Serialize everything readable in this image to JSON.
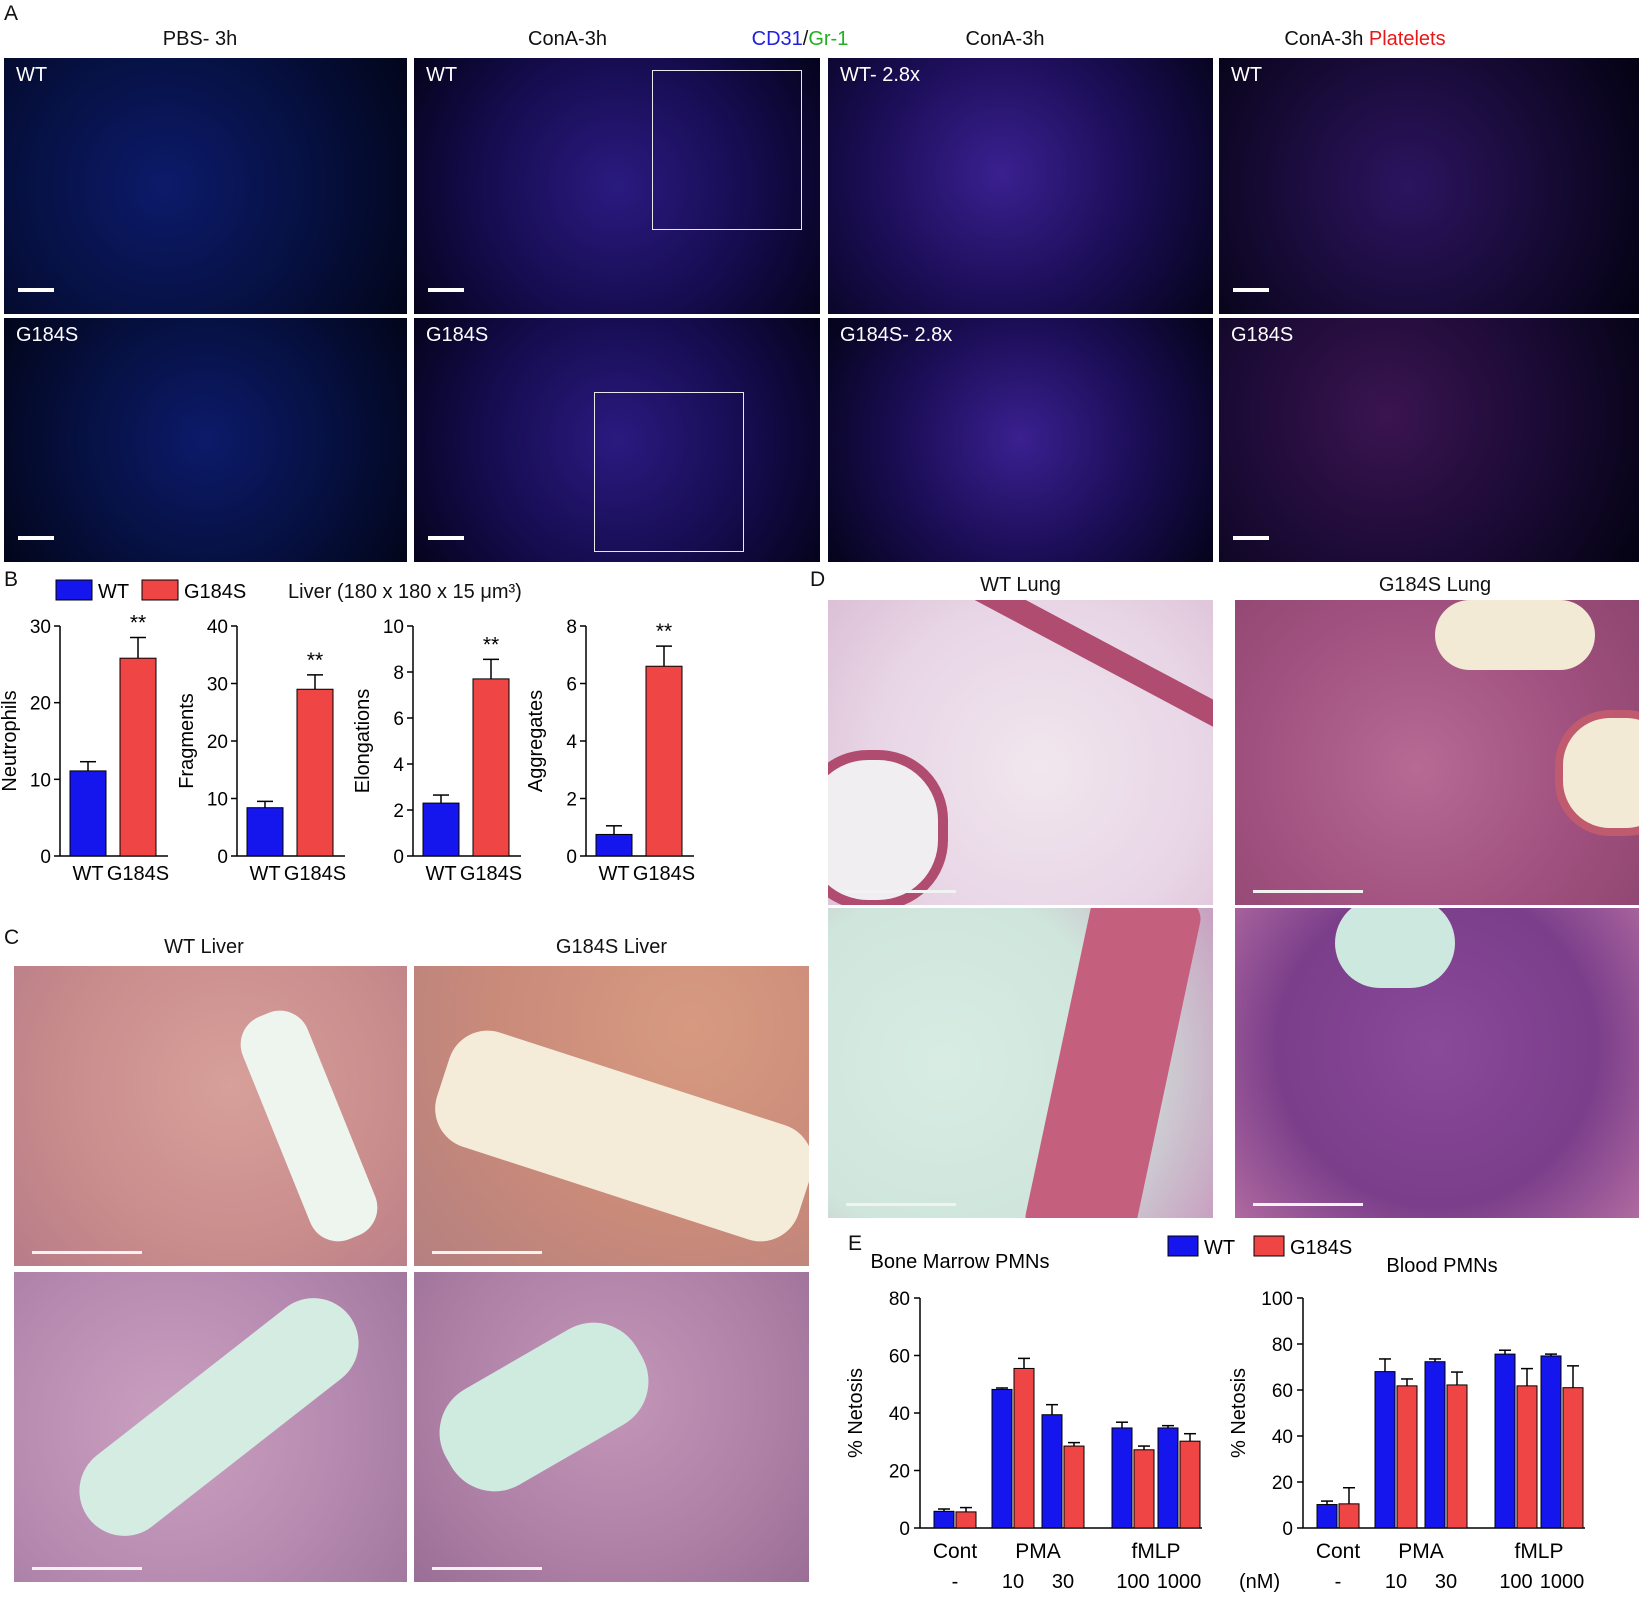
{
  "panel_letters": {
    "a": "A",
    "b": "B",
    "c": "C",
    "d": "D",
    "e": "E"
  },
  "panel_a": {
    "legend_cd31": "CD31",
    "legend_slash": "/",
    "legend_gr1": "Gr-1",
    "legend_colors": {
      "cd31": "#2020e0",
      "gr1": "#22c422",
      "platelets": "#e81818"
    },
    "col_titles": [
      "PBS- 3h",
      "ConA-3h",
      "ConA-3h",
      "ConA-3h"
    ],
    "col4_platelets": "Platelets",
    "tags_top": [
      "WT",
      "WT",
      "WT- 2.8x",
      "WT"
    ],
    "tags_bottom": [
      "G184S",
      "G184S",
      "G184S- 2.8x",
      "G184S"
    ]
  },
  "panel_c": {
    "titles": [
      "WT Liver",
      "G184S Liver"
    ]
  },
  "panel_d": {
    "titles": [
      "WT Lung",
      "G184S Lung"
    ]
  },
  "colors": {
    "wt": "#1515ee",
    "g184s": "#f04545"
  },
  "chart_data": [
    {
      "type": "bar",
      "panel": "B",
      "header": "Liver (180 x 180 x 15 μm³)",
      "legend": [
        "WT",
        "G184S"
      ],
      "charts": [
        {
          "ylabel": "Neutrophils",
          "ylim": [
            0,
            30
          ],
          "yticks": [
            0,
            10,
            20,
            30
          ],
          "categories": [
            "WT",
            "G184S"
          ],
          "values": [
            11.1,
            25.8
          ],
          "errors": [
            1.2,
            2.7
          ],
          "annotation": "**"
        },
        {
          "ylabel": "Fragments",
          "ylim": [
            0,
            40
          ],
          "yticks": [
            0,
            10,
            20,
            30,
            40
          ],
          "categories": [
            "WT",
            "G184S"
          ],
          "values": [
            8.4,
            29.0
          ],
          "errors": [
            1.1,
            2.5
          ],
          "annotation": "**"
        },
        {
          "ylabel": "Elongations",
          "ylim": [
            0,
            10
          ],
          "yticks": [
            0,
            2,
            4,
            6,
            8,
            10
          ],
          "categories": [
            "WT",
            "G184S"
          ],
          "values": [
            2.3,
            7.7
          ],
          "errors": [
            0.35,
            0.85
          ],
          "annotation": "**"
        },
        {
          "ylabel": "Aggregates",
          "ylim": [
            0,
            8
          ],
          "yticks": [
            0,
            2,
            4,
            6,
            8
          ],
          "categories": [
            "WT",
            "G184S"
          ],
          "values": [
            0.75,
            6.6
          ],
          "errors": [
            0.3,
            0.7
          ],
          "annotation": "**"
        }
      ]
    },
    {
      "type": "bar",
      "panel": "E",
      "legend": [
        "WT",
        "G184S"
      ],
      "ylabel": "% Netosis",
      "group_labels": [
        "Cont",
        "PMA",
        "fMLP"
      ],
      "dose_labels": [
        "-",
        "10",
        "30",
        "100",
        "1000"
      ],
      "dose_unit": "(nM)",
      "charts": [
        {
          "title": "Bone Marrow PMNs",
          "ylim": [
            0,
            80
          ],
          "yticks": [
            0,
            20,
            40,
            60,
            80
          ],
          "series": [
            {
              "name": "WT",
              "values": [
                5.8,
                48.2,
                39.4,
                34.8,
                34.8
              ],
              "errors": [
                0.8,
                0.5,
                3.5,
                2.0,
                0.8
              ]
            },
            {
              "name": "G184S",
              "values": [
                5.6,
                55.5,
                28.5,
                27.2,
                30.2
              ],
              "errors": [
                1.5,
                3.5,
                1.2,
                1.3,
                2.6
              ]
            }
          ]
        },
        {
          "title": "Blood PMNs",
          "ylim": [
            0,
            100
          ],
          "yticks": [
            0,
            20,
            40,
            60,
            80,
            100
          ],
          "series": [
            {
              "name": "WT",
              "values": [
                10.2,
                68.0,
                72.3,
                75.6,
                74.8
              ],
              "errors": [
                1.5,
                5.5,
                1.2,
                1.7,
                0.8
              ]
            },
            {
              "name": "G184S",
              "values": [
                10.5,
                61.8,
                62.2,
                61.8,
                61.0
              ],
              "errors": [
                7.0,
                3.0,
                5.6,
                7.5,
                9.5
              ]
            }
          ]
        }
      ]
    }
  ]
}
